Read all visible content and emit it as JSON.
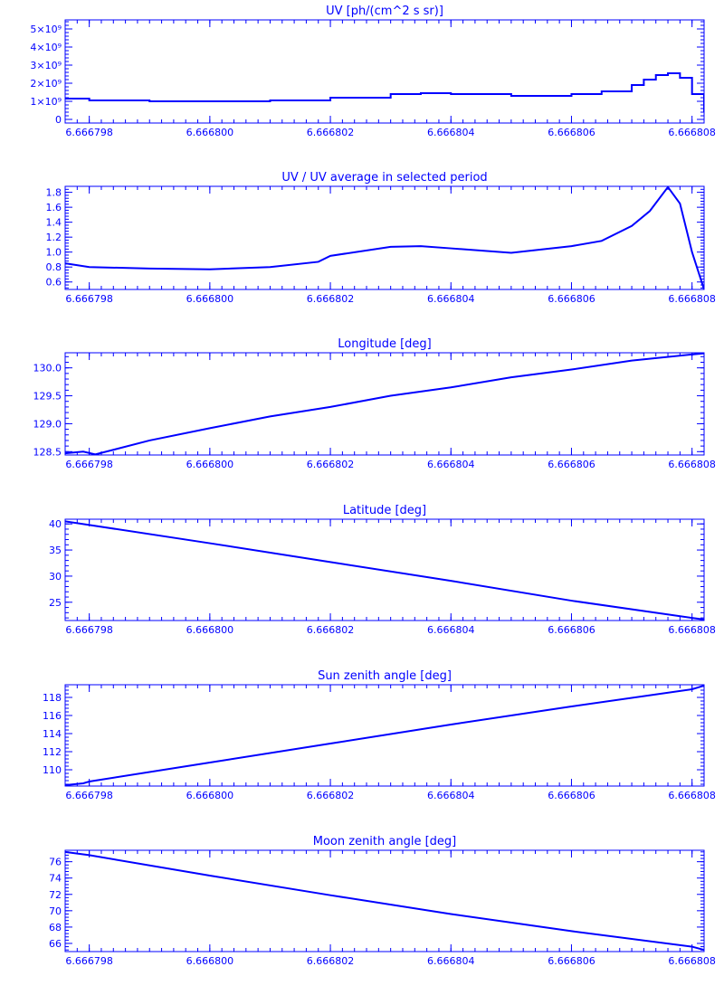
{
  "colors": {
    "foreground": "#0000ff",
    "background": "#ffffff"
  },
  "chart_data": [
    {
      "type": "line",
      "step": true,
      "title": "UV [ph/(cm^2 s sr)]",
      "xlim": [
        6.6667976,
        6.6668082
      ],
      "xticks": [
        6.666798,
        6.6668,
        6.666802,
        6.666804,
        6.666806,
        6.666808
      ],
      "xticklabels": [
        "6.666798",
        "6.666800",
        "6.666802",
        "6.666804",
        "6.666806",
        "6.666808"
      ],
      "ylim": [
        -200000000.0,
        5500000000.0
      ],
      "yticks": [
        0,
        1000000000.0,
        2000000000.0,
        3000000000.0,
        4000000000.0,
        5000000000.0
      ],
      "yticklabels": [
        "0",
        "1×10⁹",
        "2×10⁹",
        "3×10⁹",
        "4×10⁹",
        "5×10⁹"
      ],
      "minor_ticks": true,
      "series": [
        {
          "x": [
            6.6667976,
            6.666798,
            6.666799,
            6.6668,
            6.666801,
            6.666802,
            6.666803,
            6.6668035,
            6.666804,
            6.666805,
            6.666806,
            6.6668065,
            6.666807,
            6.6668072,
            6.6668074,
            6.6668076,
            6.6668078,
            6.666808,
            6.6668082
          ],
          "y": [
            1150000000.0,
            1050000000.0,
            1000000000.0,
            1000000000.0,
            1050000000.0,
            1200000000.0,
            1400000000.0,
            1450000000.0,
            1400000000.0,
            1300000000.0,
            1400000000.0,
            1550000000.0,
            1900000000.0,
            2200000000.0,
            2450000000.0,
            2550000000.0,
            2300000000.0,
            1400000000.0,
            400000000.0
          ]
        }
      ]
    },
    {
      "type": "line",
      "title": "UV / UV average in selected period",
      "xlim": [
        6.6667976,
        6.6668082
      ],
      "xticks": [
        6.666798,
        6.6668,
        6.666802,
        6.666804,
        6.666806,
        6.666808
      ],
      "xticklabels": [
        "6.666798",
        "6.666800",
        "6.666802",
        "6.666804",
        "6.666806",
        "6.666808"
      ],
      "ylim": [
        0.5,
        1.88
      ],
      "yticks": [
        0.6,
        0.8,
        1.0,
        1.2,
        1.4,
        1.6,
        1.8
      ],
      "yticklabels": [
        "0.6",
        "0.8",
        "1.0",
        "1.2",
        "1.4",
        "1.6",
        "1.8"
      ],
      "minor_ticks": true,
      "series": [
        {
          "x": [
            6.6667976,
            6.666798,
            6.666799,
            6.6668,
            6.666801,
            6.6668018,
            6.666802,
            6.666803,
            6.6668035,
            6.666804,
            6.666805,
            6.666806,
            6.6668065,
            6.666807,
            6.6668073,
            6.6668076,
            6.6668078,
            6.666808,
            6.6668082
          ],
          "y": [
            0.85,
            0.8,
            0.78,
            0.77,
            0.8,
            0.87,
            0.95,
            1.07,
            1.08,
            1.05,
            0.99,
            1.08,
            1.15,
            1.35,
            1.55,
            1.87,
            1.65,
            1.0,
            0.5
          ]
        }
      ]
    },
    {
      "type": "line",
      "title": "Longitude [deg]",
      "xlim": [
        6.6667976,
        6.6668082
      ],
      "xticks": [
        6.666798,
        6.6668,
        6.666802,
        6.666804,
        6.666806,
        6.666808
      ],
      "xticklabels": [
        "6.666798",
        "6.666800",
        "6.666802",
        "6.666804",
        "6.666806",
        "6.666808"
      ],
      "ylim": [
        128.44,
        130.27
      ],
      "yticks": [
        128.5,
        129.0,
        129.5,
        130.0
      ],
      "yticklabels": [
        "128.5",
        "129.0",
        "129.5",
        "130.0"
      ],
      "minor_ticks": true,
      "series": [
        {
          "x": [
            6.6667976,
            6.6667979,
            6.6667981,
            6.666799,
            6.6668,
            6.666801,
            6.666802,
            6.666803,
            6.666804,
            6.666805,
            6.666806,
            6.666807,
            6.666808,
            6.6668082
          ],
          "y": [
            128.47,
            128.5,
            128.45,
            128.7,
            128.92,
            129.13,
            129.3,
            129.5,
            129.65,
            129.83,
            129.97,
            130.13,
            130.24,
            130.26
          ]
        }
      ]
    },
    {
      "type": "line",
      "title": "Latitude [deg]",
      "xlim": [
        6.6667976,
        6.6668082
      ],
      "xticks": [
        6.666798,
        6.6668,
        6.666802,
        6.666804,
        6.666806,
        6.666808
      ],
      "xticklabels": [
        "6.666798",
        "6.666800",
        "6.666802",
        "6.666804",
        "6.666806",
        "6.666808"
      ],
      "ylim": [
        21.5,
        40.9
      ],
      "yticks": [
        25,
        30,
        35,
        40
      ],
      "yticklabels": [
        "25",
        "30",
        "35",
        "40"
      ],
      "minor_ticks": true,
      "series": [
        {
          "x": [
            6.6667976,
            6.666798,
            6.6668,
            6.666802,
            6.666804,
            6.666806,
            6.666808,
            6.6668082
          ],
          "y": [
            40.5,
            39.8,
            36.3,
            32.7,
            29.1,
            25.3,
            22.0,
            21.7
          ]
        }
      ]
    },
    {
      "type": "line",
      "title": "Sun zenith angle [deg]",
      "xlim": [
        6.6667976,
        6.6668082
      ],
      "xticks": [
        6.666798,
        6.6668,
        6.666802,
        6.666804,
        6.666806,
        6.666808
      ],
      "xticklabels": [
        "6.666798",
        "6.666800",
        "6.666802",
        "6.666804",
        "6.666806",
        "6.666808"
      ],
      "ylim": [
        108.2,
        119.4
      ],
      "yticks": [
        110,
        112,
        114,
        116,
        118
      ],
      "yticklabels": [
        "110",
        "112",
        "114",
        "116",
        "118"
      ],
      "minor_ticks": true,
      "series": [
        {
          "x": [
            6.6667976,
            6.6667979,
            6.666798,
            6.6668,
            6.666802,
            6.666804,
            6.666806,
            6.666808,
            6.6668082
          ],
          "y": [
            108.3,
            108.5,
            108.7,
            110.8,
            112.9,
            115.0,
            117.0,
            118.9,
            119.3
          ]
        }
      ]
    },
    {
      "type": "line",
      "title": "Moon zenith angle [deg]",
      "xlim": [
        6.6667976,
        6.6668082
      ],
      "xticks": [
        6.666798,
        6.6668,
        6.666802,
        6.666804,
        6.666806,
        6.666808
      ],
      "xticklabels": [
        "6.666798",
        "6.666800",
        "6.666802",
        "6.666804",
        "6.666806",
        "6.666808"
      ],
      "ylim": [
        65.0,
        77.4
      ],
      "yticks": [
        66,
        68,
        70,
        72,
        74,
        76
      ],
      "yticklabels": [
        "66",
        "68",
        "70",
        "72",
        "74",
        "76"
      ],
      "minor_ticks": true,
      "series": [
        {
          "x": [
            6.6667976,
            6.666798,
            6.6668,
            6.666802,
            6.666804,
            6.666806,
            6.666808,
            6.6668082
          ],
          "y": [
            77.2,
            76.8,
            74.3,
            71.9,
            69.6,
            67.5,
            65.6,
            65.2
          ]
        }
      ]
    }
  ]
}
